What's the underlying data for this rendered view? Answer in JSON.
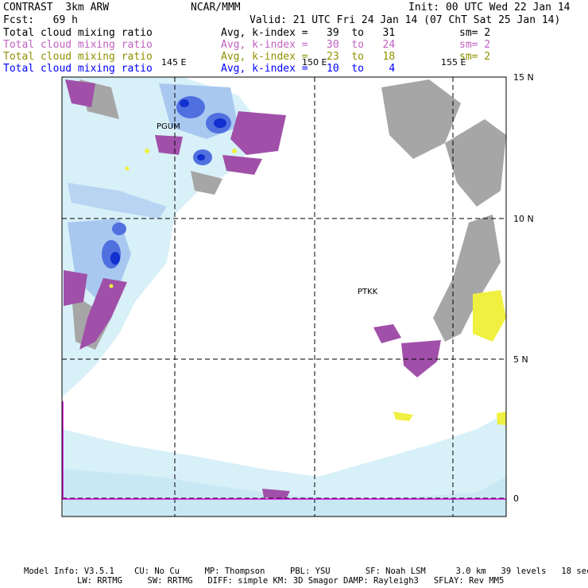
{
  "header": {
    "title": "CONTRAST  3km ARW",
    "center": "NCAR/MMM",
    "init": "Init: 00 UTC Wed 22 Jan 14",
    "fcst": "Fcst:   69 h",
    "valid": "Valid: 21 UTC Fri 24 Jan 14 (07 ChT Sat 25 Jan 14)"
  },
  "legend": [
    {
      "label": "Total cloud mixing ratio",
      "avg": "Avg, k-index =   39  to   31",
      "sm": "sm= 2",
      "color": "#000000"
    },
    {
      "label": "Total cloud mixing ratio",
      "avg": "Avg, k-index =   30  to   24",
      "sm": "sm= 2",
      "color": "#c060c0"
    },
    {
      "label": "Total cloud mixing ratio",
      "avg": "Avg, k-index =   23  to   18",
      "sm": "sm= 2",
      "color": "#909000"
    },
    {
      "label": "Total cloud mixing ratio",
      "avg": "Avg, k-index =   10  to    4",
      "sm": "",
      "color": "#0000ff"
    }
  ],
  "map": {
    "lon_labels": [
      "145 E",
      "150 E",
      "155 E"
    ],
    "lat_labels": [
      "15 N",
      "10 N",
      "5 N",
      "0"
    ],
    "stations": [
      "PGUM",
      "PTKK"
    ]
  },
  "footer": {
    "line1": "Model Info: V3.5.1    CU: No Cu     MP: Thompson     PBL: YSU       SF: Noah LSM      3.0 km   39 levels   18 sec",
    "line2": "LW: RRTMG     SW: RRTMG   DIFF: simple KM: 3D Smagor DAMP: Rayleigh3   SFLAY: Rev MM5"
  },
  "colors": {
    "gray": "#a6a6a6",
    "purple": "#a050a8",
    "light_blue": "#d8f0f8",
    "mid_blue": "#a8c8f0",
    "blue": "#5070e0",
    "dark_blue": "#1030d0",
    "yellow": "#f0f040"
  }
}
